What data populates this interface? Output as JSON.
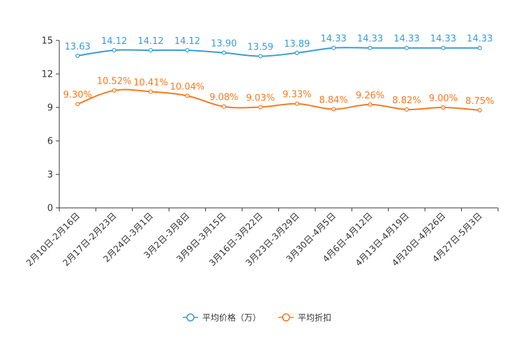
{
  "chart_data": {
    "type": "line",
    "categories": [
      "2月10日-2月16日",
      "2月17日-2月23日",
      "2月24日-3月1日",
      "3月2日-3月8日",
      "3月9日-3月15日",
      "3月16日-3月22日",
      "3月23日-3月29日",
      "3月30日-4月5日",
      "4月6日-4月12日",
      "4月13日-4月19日",
      "4月20日-4月26日",
      "4月27日-5月3日"
    ],
    "ylim": [
      0,
      15
    ],
    "yticks": [
      0,
      3,
      6,
      9,
      12,
      15
    ],
    "series": [
      {
        "name": "平均价格（万）",
        "color": "#3a9bd5",
        "values": [
          13.63,
          14.12,
          14.12,
          14.12,
          13.9,
          13.59,
          13.89,
          14.33,
          14.33,
          14.33,
          14.33,
          14.33
        ],
        "labels": [
          "13.63",
          "14.12",
          "14.12",
          "14.12",
          "13.90",
          "13.59",
          "13.89",
          "14.33",
          "14.33",
          "14.33",
          "14.33",
          "14.33"
        ]
      },
      {
        "name": "平均折扣",
        "color": "#f47a1f",
        "values": [
          9.3,
          10.52,
          10.41,
          10.04,
          9.08,
          9.03,
          9.33,
          8.84,
          9.26,
          8.82,
          9.0,
          8.75
        ],
        "labels": [
          "9.30%",
          "10.52%",
          "10.41%",
          "10.04%",
          "9.08%",
          "9.03%",
          "9.33%",
          "8.84%",
          "9.26%",
          "8.82%",
          "9.00%",
          "8.75%"
        ]
      }
    ],
    "legend_position": "bottom-center",
    "grid": false
  }
}
